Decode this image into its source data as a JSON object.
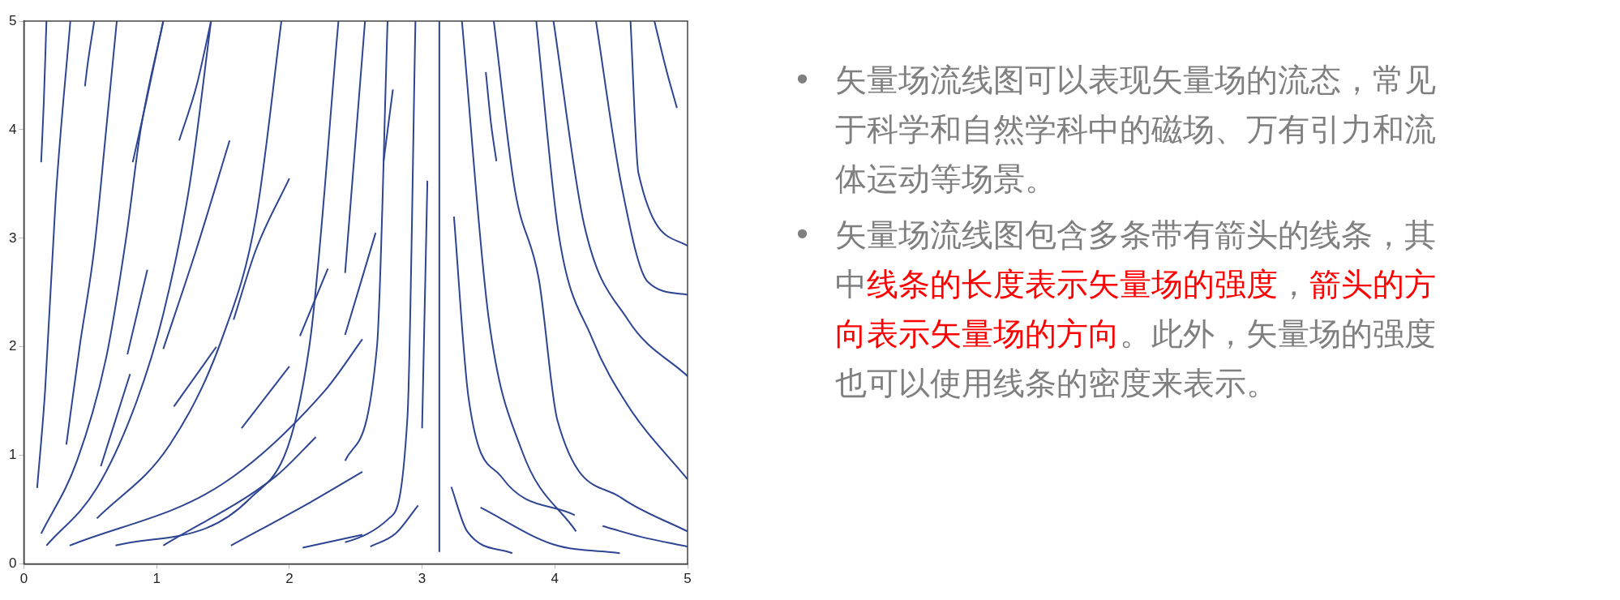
{
  "chart_data": {
    "type": "line",
    "xlim": [
      0,
      5
    ],
    "ylim": [
      0,
      5
    ],
    "xticks": [
      0,
      1,
      2,
      3,
      4,
      5
    ],
    "yticks": [
      0,
      1,
      2,
      3,
      4,
      5
    ],
    "grid": false,
    "legend": false,
    "marker": "none",
    "line_style": "solid",
    "series": [
      {
        "color": "#2e4593",
        "x": [
          0.1,
          0.16,
          0.24,
          0.35
        ],
        "values": [
          0.7,
          1.6,
          3.37,
          5
        ]
      },
      {
        "color": "#2e4593",
        "x": [
          0.13,
          0.15,
          0.17
        ],
        "values": [
          3.7,
          4.25,
          5
        ]
      },
      {
        "color": "#2e4593",
        "x": [
          0.46,
          0.48,
          0.53
        ],
        "values": [
          4.4,
          4.6,
          5
        ]
      },
      {
        "color": "#2e4593",
        "x": [
          0.32,
          0.42,
          0.53,
          0.62,
          0.7
        ],
        "values": [
          1.1,
          2,
          2.9,
          4,
          5
        ]
      },
      {
        "color": "#2e4593",
        "x": [
          0.13,
          0.4,
          0.62,
          0.77,
          0.88,
          1.05
        ],
        "values": [
          0.28,
          0.95,
          1.9,
          3,
          4,
          5
        ]
      },
      {
        "color": "#2e4593",
        "x": [
          0.17,
          0.55,
          0.85,
          1.05,
          1.25,
          1.41
        ],
        "values": [
          0.17,
          0.7,
          1.5,
          2.3,
          3.5,
          5
        ]
      },
      {
        "color": "#2e4593",
        "x": [
          0.55,
          1.1,
          1.5,
          1.75,
          1.94
        ],
        "values": [
          0.42,
          1.1,
          2.1,
          3.2,
          5
        ]
      },
      {
        "color": "#2e4593",
        "x": [
          0.69,
          1.7,
          2.15,
          2.37
        ],
        "values": [
          0.17,
          0.6,
          2,
          5
        ]
      },
      {
        "color": "#2e4593",
        "x": [
          0.345,
          1.5,
          2.27,
          2.55
        ],
        "values": [
          0.17,
          0.74,
          1.6,
          2.07
        ]
      },
      {
        "color": "#2e4593",
        "x": [
          1.05,
          1.9,
          2.2
        ],
        "values": [
          0.17,
          0.81,
          1.17
        ]
      },
      {
        "color": "#2e4593",
        "x": [
          1.56,
          2.16,
          2.55
        ],
        "values": [
          0.17,
          0.57,
          0.85
        ]
      },
      {
        "color": "#2e4593",
        "x": [
          2.1,
          2.55
        ],
        "values": [
          0.15,
          0.27
        ]
      },
      {
        "color": "#2e4593",
        "x": [
          0.78,
          0.93
        ],
        "values": [
          1.93,
          2.71
        ]
      },
      {
        "color": "#2e4593",
        "x": [
          1.05,
          1.3,
          1.55
        ],
        "values": [
          1.98,
          2.9,
          3.9
        ]
      },
      {
        "color": "#2e4593",
        "x": [
          1.17,
          1.3,
          1.41
        ],
        "values": [
          3.9,
          4.4,
          5
        ]
      },
      {
        "color": "#2e4593",
        "x": [
          0.82,
          0.92,
          1.05
        ],
        "values": [
          3.7,
          4.25,
          5
        ]
      },
      {
        "color": "#2e4593",
        "x": [
          0.58,
          0.8
        ],
        "values": [
          0.9,
          1.75
        ]
      },
      {
        "color": "#2e4593",
        "x": [
          1.13,
          1.45
        ],
        "values": [
          1.45,
          2.0
        ]
      },
      {
        "color": "#2e4593",
        "x": [
          1.64,
          2.0
        ],
        "values": [
          1.25,
          1.82
        ]
      },
      {
        "color": "#2e4593",
        "x": [
          2.08,
          2.29
        ],
        "values": [
          2.1,
          2.72
        ]
      },
      {
        "color": "#2e4593",
        "x": [
          1.58,
          1.75,
          2.0
        ],
        "values": [
          2.25,
          2.9,
          3.55
        ]
      },
      {
        "color": "#2e4593",
        "x": [
          2.42,
          2.57
        ],
        "values": [
          2.68,
          5
        ]
      },
      {
        "color": "#2e4593",
        "x": [
          2.42,
          2.66,
          2.74
        ],
        "values": [
          0.95,
          2,
          5
        ]
      },
      {
        "color": "#2e4593",
        "x": [
          2.42,
          2.75,
          2.89,
          2.95
        ],
        "values": [
          0.2,
          0.42,
          1.36,
          5
        ]
      },
      {
        "color": "#2e4593",
        "x": [
          2.71,
          2.78
        ],
        "values": [
          3.71,
          4.37
        ]
      },
      {
        "color": "#2e4593",
        "x": [
          2.42,
          2.65
        ],
        "values": [
          2.11,
          3.05
        ]
      },
      {
        "color": "#2e4593",
        "x": [
          3.0,
          3.04
        ],
        "values": [
          1.25,
          3.53
        ]
      },
      {
        "color": "#2e4593",
        "x": [
          2.61,
          2.8,
          2.97
        ],
        "values": [
          0.16,
          0.28,
          0.54
        ]
      },
      {
        "color": "#2e4593",
        "x": [
          3.13,
          3.13
        ],
        "values": [
          0.11,
          5
        ]
      },
      {
        "color": "#2e4593",
        "x": [
          3.22,
          3.34,
          3.68
        ],
        "values": [
          0.71,
          0.3,
          0.1
        ]
      },
      {
        "color": "#2e4593",
        "x": [
          3.24,
          3.35,
          3.6,
          4.15
        ],
        "values": [
          3.2,
          1.53,
          0.8,
          0.45
        ]
      },
      {
        "color": "#2e4593",
        "x": [
          3.3,
          3.5,
          3.75,
          4.16
        ],
        "values": [
          5,
          2.28,
          1.05,
          0.3
        ]
      },
      {
        "color": "#2e4593",
        "x": [
          3.54,
          3.7,
          3.88,
          4.02,
          4.5,
          5
        ],
        "values": [
          5,
          3.44,
          2.62,
          1.32,
          0.61,
          0.3
        ]
      },
      {
        "color": "#2e4593",
        "x": [
          3.86,
          4.03,
          4.28,
          4.55,
          5
        ],
        "values": [
          5,
          3.03,
          2.08,
          1.46,
          0.78
        ]
      },
      {
        "color": "#2e4593",
        "x": [
          3.99,
          4.22,
          4.55,
          5
        ],
        "values": [
          5,
          3.13,
          2.25,
          1.73
        ]
      },
      {
        "color": "#2e4593",
        "x": [
          4.31,
          4.5,
          4.7,
          5
        ],
        "values": [
          5,
          3.5,
          2.6,
          2.48
        ]
      },
      {
        "color": "#2e4593",
        "x": [
          4.57,
          4.63,
          5
        ],
        "values": [
          5,
          3.6,
          2.93
        ]
      },
      {
        "color": "#2e4593",
        "x": [
          4.75,
          4.84,
          4.92
        ],
        "values": [
          5,
          4.55,
          4.2
        ]
      },
      {
        "color": "#2e4593",
        "x": [
          3.44,
          3.99,
          4.49
        ],
        "values": [
          0.52,
          0.18,
          0.1
        ]
      },
      {
        "color": "#2e4593",
        "x": [
          4.36,
          4.65,
          5
        ],
        "values": [
          0.35,
          0.25,
          0.16
        ]
      },
      {
        "color": "#2e4593",
        "x": [
          3.48,
          3.52,
          3.56
        ],
        "values": [
          4.53,
          4.05,
          3.71
        ]
      }
    ],
    "annotations": [
      "•矢量场流线图可以表现矢量场的流态，常见于科学和自然学科中的磁场、万有引力和流体运动等场景。",
      "•矢量场流线图包含多条带有箭头的线条，其中",
      "线条的长度表示矢量场的强度",
      "，",
      "箭头的方向表示矢量场的方向",
      "。此外，矢量场的强度也可以使用线条的密度来表示。"
    ]
  }
}
